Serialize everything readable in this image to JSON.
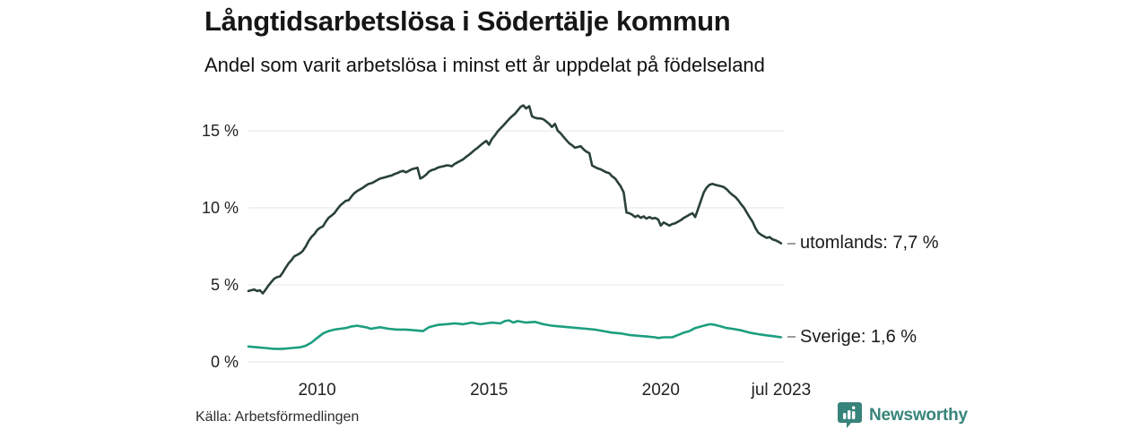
{
  "header": {
    "title": "Långtidsarbetslösa i Södertälje kommun",
    "subtitle": "Andel som varit arbetslösa i minst ett år uppdelat på födelseland"
  },
  "chart_data": {
    "type": "line",
    "unit": "%",
    "x_range": [
      2008.0,
      2023.58
    ],
    "ylim": [
      0,
      15
    ],
    "grid": "horizontal",
    "y_axis": {
      "ticks": [
        {
          "value": 0,
          "label": "0 %"
        },
        {
          "value": 5,
          "label": "5 %"
        },
        {
          "value": 10,
          "label": "10 %"
        },
        {
          "value": 15,
          "label": "15 %"
        }
      ]
    },
    "x_axis": {
      "ticks": [
        {
          "value": 2010,
          "label": "2010"
        },
        {
          "value": 2015,
          "label": "2015"
        },
        {
          "value": 2020,
          "label": "2020"
        },
        {
          "value": 2023.5,
          "label": "jul 2023"
        }
      ]
    },
    "series": [
      {
        "name": "utomlands",
        "end_label": "utomlands: 7,7 %",
        "end_value": 7.7,
        "color": "#294139",
        "points": [
          [
            2008.0,
            4.6
          ],
          [
            2008.08,
            4.65
          ],
          [
            2008.17,
            4.7
          ],
          [
            2008.25,
            4.6
          ],
          [
            2008.33,
            4.65
          ],
          [
            2008.42,
            4.45
          ],
          [
            2008.5,
            4.7
          ],
          [
            2008.58,
            4.95
          ],
          [
            2008.67,
            5.2
          ],
          [
            2008.75,
            5.4
          ],
          [
            2008.83,
            5.5
          ],
          [
            2008.92,
            5.55
          ],
          [
            2009.0,
            5.8
          ],
          [
            2009.08,
            6.1
          ],
          [
            2009.17,
            6.4
          ],
          [
            2009.25,
            6.6
          ],
          [
            2009.33,
            6.85
          ],
          [
            2009.42,
            6.95
          ],
          [
            2009.5,
            7.05
          ],
          [
            2009.58,
            7.2
          ],
          [
            2009.67,
            7.5
          ],
          [
            2009.75,
            7.85
          ],
          [
            2009.83,
            8.1
          ],
          [
            2009.92,
            8.3
          ],
          [
            2010.0,
            8.55
          ],
          [
            2010.08,
            8.7
          ],
          [
            2010.17,
            8.8
          ],
          [
            2010.25,
            9.1
          ],
          [
            2010.33,
            9.35
          ],
          [
            2010.42,
            9.5
          ],
          [
            2010.5,
            9.65
          ],
          [
            2010.58,
            9.9
          ],
          [
            2010.67,
            10.15
          ],
          [
            2010.75,
            10.3
          ],
          [
            2010.83,
            10.45
          ],
          [
            2010.92,
            10.5
          ],
          [
            2011.0,
            10.75
          ],
          [
            2011.08,
            10.95
          ],
          [
            2011.17,
            11.1
          ],
          [
            2011.25,
            11.2
          ],
          [
            2011.33,
            11.3
          ],
          [
            2011.42,
            11.45
          ],
          [
            2011.5,
            11.55
          ],
          [
            2011.58,
            11.6
          ],
          [
            2011.67,
            11.7
          ],
          [
            2011.75,
            11.8
          ],
          [
            2011.83,
            11.9
          ],
          [
            2011.92,
            11.95
          ],
          [
            2012.0,
            12.0
          ],
          [
            2012.08,
            12.05
          ],
          [
            2012.17,
            12.1
          ],
          [
            2012.25,
            12.2
          ],
          [
            2012.33,
            12.25
          ],
          [
            2012.42,
            12.35
          ],
          [
            2012.5,
            12.4
          ],
          [
            2012.58,
            12.3
          ],
          [
            2012.67,
            12.4
          ],
          [
            2012.75,
            12.5
          ],
          [
            2012.83,
            12.55
          ],
          [
            2012.92,
            12.6
          ],
          [
            2013.0,
            11.9
          ],
          [
            2013.08,
            12.0
          ],
          [
            2013.17,
            12.15
          ],
          [
            2013.25,
            12.35
          ],
          [
            2013.33,
            12.45
          ],
          [
            2013.42,
            12.5
          ],
          [
            2013.5,
            12.6
          ],
          [
            2013.58,
            12.65
          ],
          [
            2013.67,
            12.7
          ],
          [
            2013.75,
            12.75
          ],
          [
            2013.83,
            12.75
          ],
          [
            2013.92,
            12.7
          ],
          [
            2014.0,
            12.85
          ],
          [
            2014.08,
            12.95
          ],
          [
            2014.17,
            13.05
          ],
          [
            2014.25,
            13.15
          ],
          [
            2014.33,
            13.3
          ],
          [
            2014.42,
            13.45
          ],
          [
            2014.5,
            13.6
          ],
          [
            2014.58,
            13.75
          ],
          [
            2014.67,
            13.9
          ],
          [
            2014.75,
            14.05
          ],
          [
            2014.83,
            14.2
          ],
          [
            2014.92,
            14.35
          ],
          [
            2015.0,
            14.1
          ],
          [
            2015.08,
            14.45
          ],
          [
            2015.17,
            14.7
          ],
          [
            2015.25,
            14.95
          ],
          [
            2015.33,
            15.15
          ],
          [
            2015.42,
            15.35
          ],
          [
            2015.5,
            15.55
          ],
          [
            2015.58,
            15.75
          ],
          [
            2015.67,
            15.95
          ],
          [
            2015.75,
            16.1
          ],
          [
            2015.83,
            16.3
          ],
          [
            2015.92,
            16.55
          ],
          [
            2016.0,
            16.65
          ],
          [
            2016.08,
            16.45
          ],
          [
            2016.17,
            16.6
          ],
          [
            2016.25,
            15.95
          ],
          [
            2016.33,
            15.85
          ],
          [
            2016.42,
            15.8
          ],
          [
            2016.5,
            15.8
          ],
          [
            2016.58,
            15.75
          ],
          [
            2016.67,
            15.6
          ],
          [
            2016.75,
            15.45
          ],
          [
            2016.83,
            15.25
          ],
          [
            2016.92,
            15.45
          ],
          [
            2017.0,
            15.0
          ],
          [
            2017.08,
            14.85
          ],
          [
            2017.17,
            14.6
          ],
          [
            2017.25,
            14.4
          ],
          [
            2017.33,
            14.2
          ],
          [
            2017.42,
            14.05
          ],
          [
            2017.5,
            13.9
          ],
          [
            2017.58,
            13.95
          ],
          [
            2017.67,
            14.0
          ],
          [
            2017.75,
            13.8
          ],
          [
            2017.83,
            13.65
          ],
          [
            2017.92,
            13.55
          ],
          [
            2018.0,
            12.75
          ],
          [
            2018.08,
            12.65
          ],
          [
            2018.17,
            12.55
          ],
          [
            2018.25,
            12.5
          ],
          [
            2018.33,
            12.4
          ],
          [
            2018.42,
            12.3
          ],
          [
            2018.5,
            12.25
          ],
          [
            2018.58,
            12.05
          ],
          [
            2018.67,
            11.9
          ],
          [
            2018.75,
            11.65
          ],
          [
            2018.83,
            11.4
          ],
          [
            2018.92,
            11.0
          ],
          [
            2019.0,
            9.7
          ],
          [
            2019.08,
            9.65
          ],
          [
            2019.17,
            9.55
          ],
          [
            2019.25,
            9.4
          ],
          [
            2019.33,
            9.5
          ],
          [
            2019.42,
            9.35
          ],
          [
            2019.5,
            9.45
          ],
          [
            2019.58,
            9.3
          ],
          [
            2019.67,
            9.4
          ],
          [
            2019.75,
            9.3
          ],
          [
            2019.83,
            9.35
          ],
          [
            2019.92,
            9.25
          ],
          [
            2020.0,
            8.85
          ],
          [
            2020.08,
            9.05
          ],
          [
            2020.17,
            8.95
          ],
          [
            2020.25,
            8.85
          ],
          [
            2020.33,
            8.95
          ],
          [
            2020.42,
            9.0
          ],
          [
            2020.5,
            9.1
          ],
          [
            2020.58,
            9.2
          ],
          [
            2020.67,
            9.35
          ],
          [
            2020.75,
            9.45
          ],
          [
            2020.83,
            9.55
          ],
          [
            2020.92,
            9.65
          ],
          [
            2021.0,
            9.4
          ],
          [
            2021.08,
            9.9
          ],
          [
            2021.17,
            10.5
          ],
          [
            2021.25,
            11.0
          ],
          [
            2021.33,
            11.3
          ],
          [
            2021.42,
            11.5
          ],
          [
            2021.5,
            11.55
          ],
          [
            2021.58,
            11.5
          ],
          [
            2021.67,
            11.45
          ],
          [
            2021.75,
            11.4
          ],
          [
            2021.83,
            11.35
          ],
          [
            2021.92,
            11.2
          ],
          [
            2022.0,
            11.0
          ],
          [
            2022.08,
            10.85
          ],
          [
            2022.17,
            10.7
          ],
          [
            2022.25,
            10.5
          ],
          [
            2022.33,
            10.25
          ],
          [
            2022.42,
            10.0
          ],
          [
            2022.5,
            9.7
          ],
          [
            2022.58,
            9.4
          ],
          [
            2022.67,
            9.1
          ],
          [
            2022.75,
            8.7
          ],
          [
            2022.83,
            8.4
          ],
          [
            2022.92,
            8.25
          ],
          [
            2023.0,
            8.15
          ],
          [
            2023.08,
            8.05
          ],
          [
            2023.17,
            8.1
          ],
          [
            2023.25,
            7.95
          ],
          [
            2023.33,
            7.9
          ],
          [
            2023.42,
            7.8
          ],
          [
            2023.5,
            7.7
          ]
        ]
      },
      {
        "name": "Sverige",
        "end_label": "Sverige: 1,6 %",
        "end_value": 1.6,
        "color": "#1c9e7f",
        "points": [
          [
            2008.0,
            1.0
          ],
          [
            2008.25,
            0.95
          ],
          [
            2008.5,
            0.9
          ],
          [
            2008.75,
            0.85
          ],
          [
            2009.0,
            0.85
          ],
          [
            2009.25,
            0.9
          ],
          [
            2009.5,
            0.95
          ],
          [
            2009.67,
            1.05
          ],
          [
            2009.83,
            1.25
          ],
          [
            2010.0,
            1.55
          ],
          [
            2010.17,
            1.85
          ],
          [
            2010.33,
            2.0
          ],
          [
            2010.5,
            2.1
          ],
          [
            2010.67,
            2.15
          ],
          [
            2010.83,
            2.2
          ],
          [
            2011.0,
            2.3
          ],
          [
            2011.17,
            2.35
          ],
          [
            2011.42,
            2.25
          ],
          [
            2011.56,
            2.15
          ],
          [
            2011.83,
            2.25
          ],
          [
            2012.08,
            2.15
          ],
          [
            2012.33,
            2.1
          ],
          [
            2012.58,
            2.1
          ],
          [
            2012.83,
            2.05
          ],
          [
            2013.08,
            2.0
          ],
          [
            2013.25,
            2.25
          ],
          [
            2013.5,
            2.4
          ],
          [
            2013.75,
            2.45
          ],
          [
            2014.0,
            2.5
          ],
          [
            2014.25,
            2.45
          ],
          [
            2014.5,
            2.55
          ],
          [
            2014.75,
            2.45
          ],
          [
            2015.08,
            2.55
          ],
          [
            2015.33,
            2.5
          ],
          [
            2015.46,
            2.65
          ],
          [
            2015.58,
            2.7
          ],
          [
            2015.71,
            2.55
          ],
          [
            2015.83,
            2.65
          ],
          [
            2016.08,
            2.55
          ],
          [
            2016.33,
            2.6
          ],
          [
            2016.58,
            2.45
          ],
          [
            2016.83,
            2.35
          ],
          [
            2017.08,
            2.3
          ],
          [
            2017.33,
            2.25
          ],
          [
            2017.58,
            2.2
          ],
          [
            2017.83,
            2.15
          ],
          [
            2018.08,
            2.1
          ],
          [
            2018.33,
            2.0
          ],
          [
            2018.58,
            1.9
          ],
          [
            2018.83,
            1.85
          ],
          [
            2019.08,
            1.75
          ],
          [
            2019.33,
            1.7
          ],
          [
            2019.58,
            1.65
          ],
          [
            2019.83,
            1.6
          ],
          [
            2019.92,
            1.55
          ],
          [
            2020.08,
            1.6
          ],
          [
            2020.33,
            1.6
          ],
          [
            2020.5,
            1.75
          ],
          [
            2020.67,
            1.9
          ],
          [
            2020.83,
            2.0
          ],
          [
            2021.0,
            2.2
          ],
          [
            2021.17,
            2.3
          ],
          [
            2021.33,
            2.4
          ],
          [
            2021.44,
            2.45
          ],
          [
            2021.58,
            2.4
          ],
          [
            2021.75,
            2.3
          ],
          [
            2021.92,
            2.2
          ],
          [
            2022.08,
            2.15
          ],
          [
            2022.33,
            2.05
          ],
          [
            2022.58,
            1.9
          ],
          [
            2022.83,
            1.8
          ],
          [
            2023.0,
            1.75
          ],
          [
            2023.17,
            1.7
          ],
          [
            2023.33,
            1.65
          ],
          [
            2023.5,
            1.6
          ]
        ]
      }
    ],
    "style": {
      "grid_color": "#e4e4e4",
      "axis_text_color": "#222222",
      "label_dash_color": "#9c9c9c"
    }
  },
  "footer": {
    "source": "Källa: Arbetsförmedlingen",
    "brand": "Newsworthy",
    "brand_color": "#37847b"
  }
}
